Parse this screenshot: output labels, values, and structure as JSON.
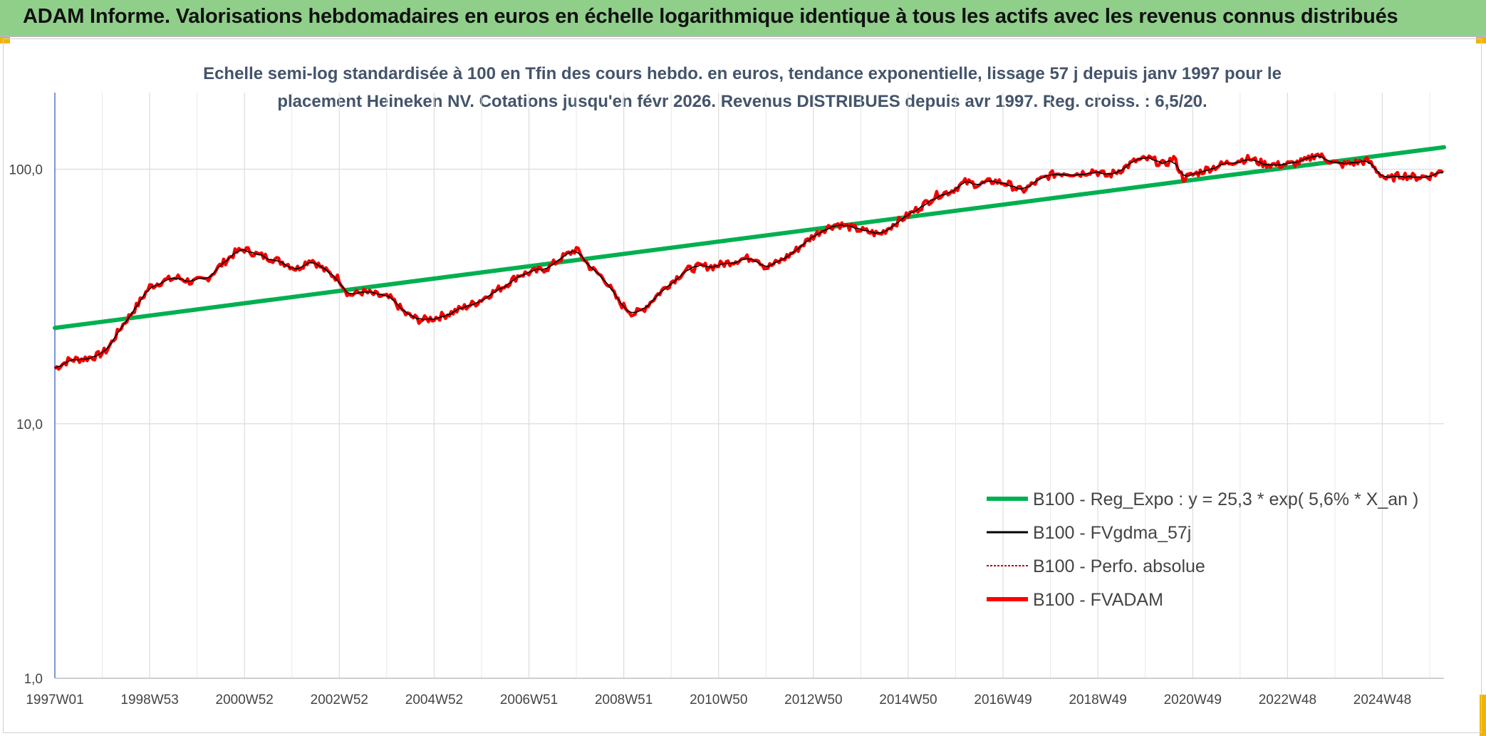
{
  "header": {
    "title": "ADAM Informe. Valorisations hebdomadaires en euros en échelle logarithmique identique à tous les actifs avec les revenus connus distribués"
  },
  "colors": {
    "header_bg": "#8fcf8a",
    "corner_accent": "#f0b400",
    "trend": "#00b050",
    "smooth": "#000000",
    "perf": "#c00000",
    "fvadam": "#ff0000"
  },
  "chart_data": {
    "type": "line",
    "scale": "log",
    "title_lines": [
      "Echelle semi-log standardisée à 100 en Tfin des cours hebdo. en euros, tendance exponentielle, lissage 57 j depuis janv 1997 pour le",
      "placement Heineken NV. Cotations jusqu'en févr 2026. Revenus DISTRIBUES depuis avr 1997. Reg. croiss. : 6,5/20."
    ],
    "ylim": [
      1,
      200
    ],
    "y_ticks": [
      {
        "value": 1,
        "label": "1,0"
      },
      {
        "value": 10,
        "label": "10,0"
      },
      {
        "value": 100,
        "label": "100,0"
      }
    ],
    "xlim": [
      1997.0,
      2026.3
    ],
    "x_ticks": [
      {
        "pos": 1997.0,
        "label": "1997W01"
      },
      {
        "pos": 1999.0,
        "label": "1998W53"
      },
      {
        "pos": 2001.0,
        "label": "2000W52"
      },
      {
        "pos": 2003.0,
        "label": "2002W52"
      },
      {
        "pos": 2005.0,
        "label": "2004W52"
      },
      {
        "pos": 2007.0,
        "label": "2006W51"
      },
      {
        "pos": 2009.0,
        "label": "2008W51"
      },
      {
        "pos": 2011.0,
        "label": "2010W50"
      },
      {
        "pos": 2013.0,
        "label": "2012W50"
      },
      {
        "pos": 2015.0,
        "label": "2014W50"
      },
      {
        "pos": 2017.0,
        "label": "2016W49"
      },
      {
        "pos": 2019.0,
        "label": "2018W49"
      },
      {
        "pos": 2021.0,
        "label": "2020W49"
      },
      {
        "pos": 2023.0,
        "label": "2022W48"
      },
      {
        "pos": 2025.0,
        "label": "2024W48"
      }
    ],
    "grid": true,
    "legend_position": "bottom-right",
    "trend": {
      "start": [
        1997.0,
        23.8
      ],
      "end": [
        2026.3,
        122
      ]
    },
    "series": [
      {
        "name": "B100 - Reg_Expo : y = 25,3 * exp( 5,6% *  X_an )",
        "style": "trend"
      },
      {
        "name": "B100 - FVgdma_57j",
        "style": "smooth"
      },
      {
        "name": "B100 - Perfo. absolue",
        "style": "perf"
      },
      {
        "name": "B100 - FVADAM",
        "style": "fvadam",
        "points": [
          [
            1997.0,
            16.5
          ],
          [
            1997.3,
            17.8
          ],
          [
            1997.6,
            18.0
          ],
          [
            1997.9,
            18.5
          ],
          [
            1998.1,
            19.5
          ],
          [
            1998.4,
            24.0
          ],
          [
            1998.7,
            28.5
          ],
          [
            1999.0,
            34.5
          ],
          [
            1999.3,
            36.5
          ],
          [
            1999.6,
            37.5
          ],
          [
            1999.9,
            36.0
          ],
          [
            2000.2,
            37.0
          ],
          [
            2000.5,
            42.0
          ],
          [
            2000.8,
            47.0
          ],
          [
            2001.0,
            48.5
          ],
          [
            2001.3,
            46.0
          ],
          [
            2001.6,
            44.5
          ],
          [
            2001.9,
            42.5
          ],
          [
            2002.1,
            40.5
          ],
          [
            2002.4,
            44.5
          ],
          [
            2002.7,
            40.0
          ],
          [
            2003.0,
            37.0
          ],
          [
            2003.2,
            32.0
          ],
          [
            2003.5,
            33.0
          ],
          [
            2003.8,
            32.0
          ],
          [
            2004.1,
            31.0
          ],
          [
            2004.4,
            27.0
          ],
          [
            2004.7,
            25.5
          ],
          [
            2005.0,
            26.0
          ],
          [
            2005.3,
            27.0
          ],
          [
            2005.6,
            28.5
          ],
          [
            2005.9,
            30.0
          ],
          [
            2006.2,
            32.5
          ],
          [
            2006.5,
            35.0
          ],
          [
            2006.8,
            38.5
          ],
          [
            2007.1,
            39.5
          ],
          [
            2007.4,
            41.0
          ],
          [
            2007.7,
            45.0
          ],
          [
            2008.0,
            48.5
          ],
          [
            2008.3,
            41.0
          ],
          [
            2008.6,
            37.0
          ],
          [
            2008.9,
            30.0
          ],
          [
            2009.2,
            27.0
          ],
          [
            2009.4,
            28.0
          ],
          [
            2009.7,
            32.0
          ],
          [
            2010.0,
            36.0
          ],
          [
            2010.3,
            40.0
          ],
          [
            2010.6,
            41.5
          ],
          [
            2010.9,
            41.5
          ],
          [
            2011.2,
            43.0
          ],
          [
            2011.5,
            44.5
          ],
          [
            2011.8,
            45.0
          ],
          [
            2012.0,
            41.0
          ],
          [
            2012.3,
            43.5
          ],
          [
            2012.6,
            47.5
          ],
          [
            2012.9,
            53.0
          ],
          [
            2013.2,
            58.0
          ],
          [
            2013.5,
            61.0
          ],
          [
            2013.8,
            59.0
          ],
          [
            2014.1,
            57.0
          ],
          [
            2014.4,
            55.5
          ],
          [
            2014.7,
            61.0
          ],
          [
            2015.0,
            66.0
          ],
          [
            2015.3,
            72.0
          ],
          [
            2015.6,
            79.0
          ],
          [
            2015.9,
            82.0
          ],
          [
            2016.2,
            89.0
          ],
          [
            2016.5,
            87.0
          ],
          [
            2016.8,
            90.0
          ],
          [
            2017.1,
            87.5
          ],
          [
            2017.4,
            82.0
          ],
          [
            2017.7,
            89.0
          ],
          [
            2018.0,
            95.0
          ],
          [
            2018.3,
            97.0
          ],
          [
            2018.6,
            96.0
          ],
          [
            2018.9,
            99.0
          ],
          [
            2019.2,
            94.0
          ],
          [
            2019.5,
            100.0
          ],
          [
            2019.8,
            108.0
          ],
          [
            2020.1,
            110.0
          ],
          [
            2020.4,
            104.0
          ],
          [
            2020.6,
            111.0
          ],
          [
            2020.8,
            92.0
          ],
          [
            2021.0,
            95.0
          ],
          [
            2021.3,
            100.0
          ],
          [
            2021.6,
            104.0
          ],
          [
            2021.9,
            108.0
          ],
          [
            2022.2,
            110.0
          ],
          [
            2022.5,
            105.0
          ],
          [
            2022.8,
            104.0
          ],
          [
            2023.1,
            105.0
          ],
          [
            2023.4,
            108.0
          ],
          [
            2023.6,
            115.0
          ],
          [
            2023.8,
            110.0
          ],
          [
            2024.1,
            104.0
          ],
          [
            2024.4,
            106.0
          ],
          [
            2024.7,
            108.0
          ],
          [
            2024.9,
            98.0
          ],
          [
            2025.1,
            91.0
          ],
          [
            2025.4,
            95.0
          ],
          [
            2025.7,
            93.0
          ],
          [
            2026.0,
            94.0
          ],
          [
            2026.3,
            99.0
          ]
        ]
      }
    ]
  }
}
